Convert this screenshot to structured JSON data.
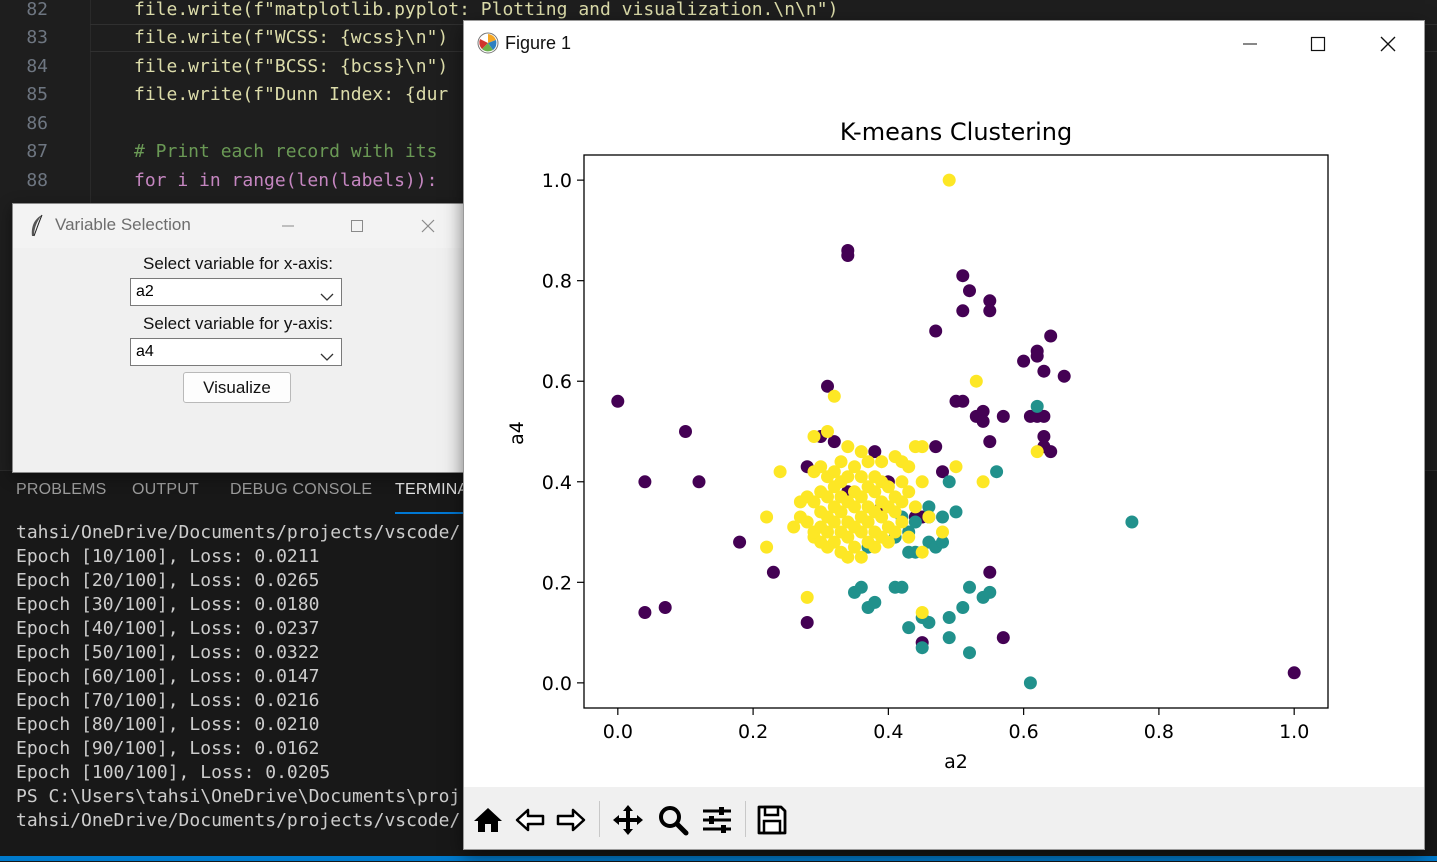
{
  "editor": {
    "line_numbers": [
      "82",
      "83",
      "84",
      "85",
      "86",
      "87",
      "88"
    ],
    "lines": {
      "l82": "file.write(f\"matplotlib.pyplot: Plotting and visualization.\\n\\n\")",
      "l83": "file.write(f\"WCSS: {wcss}\\n\")",
      "l84": "file.write(f\"BCSS: {bcss}\\n\")",
      "l85": "file.write(f\"Dunn Index: {dur",
      "l87": "# Print each record with its",
      "l88": "for i in range(len(labels)):"
    }
  },
  "panel": {
    "tabs": [
      "PROBLEMS",
      "OUTPUT",
      "DEBUG CONSOLE",
      "TERMINA"
    ],
    "active_tab": "TERMINA",
    "terminal_lines": [
      "tahsi/OneDrive/Documents/projects/vscode/",
      "Epoch [10/100], Loss: 0.0211",
      "Epoch [20/100], Loss: 0.0265",
      "Epoch [30/100], Loss: 0.0180",
      "Epoch [40/100], Loss: 0.0237",
      "Epoch [50/100], Loss: 0.0322",
      "Epoch [60/100], Loss: 0.0147",
      "Epoch [70/100], Loss: 0.0216",
      "Epoch [80/100], Loss: 0.0210",
      "Epoch [90/100], Loss: 0.0162",
      "Epoch [100/100], Loss: 0.0205",
      "PS C:\\Users\\tahsi\\OneDrive\\Documents\\proj",
      "tahsi/OneDrive/Documents/projects/vscode/"
    ]
  },
  "variable_window": {
    "title": "Variable Selection",
    "x_label": "Select variable for x-axis:",
    "x_value": "a2",
    "y_label": "Select variable for y-axis:",
    "y_value": "a4",
    "button": "Visualize"
  },
  "figure_window": {
    "title": "Figure 1",
    "toolbar": [
      "home-icon",
      "back-arrow-icon",
      "forward-arrow-icon",
      "pan-icon",
      "zoom-icon",
      "configure-subplots-icon",
      "save-icon"
    ]
  },
  "chart_data": {
    "type": "scatter",
    "title": "K-means Clustering",
    "xlabel": "a2",
    "ylabel": "a4",
    "xlim": [
      -0.05,
      1.05
    ],
    "ylim": [
      -0.05,
      1.05
    ],
    "xticks": [
      "0.0",
      "0.2",
      "0.4",
      "0.6",
      "0.8",
      "1.0"
    ],
    "yticks": [
      "0.0",
      "0.2",
      "0.4",
      "0.6",
      "0.8",
      "1.0"
    ],
    "grid": false,
    "legend": "none",
    "series": [
      {
        "color": "#440154",
        "points": [
          [
            0.0,
            0.56
          ],
          [
            0.04,
            0.4
          ],
          [
            0.04,
            0.14
          ],
          [
            0.07,
            0.15
          ],
          [
            0.1,
            0.5
          ],
          [
            0.12,
            0.4
          ],
          [
            0.18,
            0.28
          ],
          [
            0.23,
            0.22
          ],
          [
            0.28,
            0.12
          ],
          [
            0.28,
            0.43
          ],
          [
            0.3,
            0.49
          ],
          [
            0.31,
            0.59
          ],
          [
            0.32,
            0.48
          ],
          [
            0.34,
            0.38
          ],
          [
            0.34,
            0.85
          ],
          [
            0.34,
            0.86
          ],
          [
            0.38,
            0.46
          ],
          [
            0.39,
            0.35
          ],
          [
            0.4,
            0.4
          ],
          [
            0.44,
            0.33
          ],
          [
            0.45,
            0.33
          ],
          [
            0.45,
            0.08
          ],
          [
            0.47,
            0.47
          ],
          [
            0.47,
            0.7
          ],
          [
            0.48,
            0.42
          ],
          [
            0.5,
            0.56
          ],
          [
            0.51,
            0.56
          ],
          [
            0.51,
            0.74
          ],
          [
            0.51,
            0.81
          ],
          [
            0.52,
            0.78
          ],
          [
            0.53,
            0.53
          ],
          [
            0.54,
            0.54
          ],
          [
            0.54,
            0.52
          ],
          [
            0.55,
            0.76
          ],
          [
            0.55,
            0.74
          ],
          [
            0.55,
            0.48
          ],
          [
            0.55,
            0.22
          ],
          [
            0.57,
            0.53
          ],
          [
            0.57,
            0.09
          ],
          [
            0.6,
            0.64
          ],
          [
            0.61,
            0.53
          ],
          [
            0.62,
            0.53
          ],
          [
            0.62,
            0.66
          ],
          [
            0.62,
            0.65
          ],
          [
            0.63,
            0.53
          ],
          [
            0.63,
            0.49
          ],
          [
            0.63,
            0.62
          ],
          [
            0.63,
            0.47
          ],
          [
            0.64,
            0.46
          ],
          [
            0.64,
            0.69
          ],
          [
            0.66,
            0.61
          ],
          [
            1.0,
            0.02
          ]
        ]
      },
      {
        "color": "#21918c",
        "points": [
          [
            0.35,
            0.18
          ],
          [
            0.36,
            0.19
          ],
          [
            0.37,
            0.27
          ],
          [
            0.37,
            0.15
          ],
          [
            0.38,
            0.16
          ],
          [
            0.41,
            0.29
          ],
          [
            0.41,
            0.19
          ],
          [
            0.42,
            0.19
          ],
          [
            0.42,
            0.33
          ],
          [
            0.43,
            0.3
          ],
          [
            0.43,
            0.26
          ],
          [
            0.43,
            0.11
          ],
          [
            0.44,
            0.32
          ],
          [
            0.44,
            0.26
          ],
          [
            0.45,
            0.13
          ],
          [
            0.45,
            0.07
          ],
          [
            0.46,
            0.35
          ],
          [
            0.46,
            0.12
          ],
          [
            0.46,
            0.28
          ],
          [
            0.46,
            0.33
          ],
          [
            0.47,
            0.27
          ],
          [
            0.48,
            0.28
          ],
          [
            0.48,
            0.33
          ],
          [
            0.49,
            0.13
          ],
          [
            0.49,
            0.09
          ],
          [
            0.49,
            0.4
          ],
          [
            0.5,
            0.34
          ],
          [
            0.51,
            0.15
          ],
          [
            0.52,
            0.19
          ],
          [
            0.52,
            0.06
          ],
          [
            0.54,
            0.17
          ],
          [
            0.55,
            0.18
          ],
          [
            0.56,
            0.42
          ],
          [
            0.61,
            0.0
          ],
          [
            0.62,
            0.55
          ],
          [
            0.76,
            0.32
          ]
        ]
      },
      {
        "color": "#fde725",
        "points": [
          [
            0.22,
            0.33
          ],
          [
            0.22,
            0.27
          ],
          [
            0.24,
            0.42
          ],
          [
            0.26,
            0.31
          ],
          [
            0.27,
            0.36
          ],
          [
            0.27,
            0.33
          ],
          [
            0.28,
            0.32
          ],
          [
            0.28,
            0.37
          ],
          [
            0.28,
            0.17
          ],
          [
            0.29,
            0.29
          ],
          [
            0.29,
            0.3
          ],
          [
            0.29,
            0.36
          ],
          [
            0.29,
            0.42
          ],
          [
            0.29,
            0.49
          ],
          [
            0.3,
            0.28
          ],
          [
            0.3,
            0.31
          ],
          [
            0.3,
            0.34
          ],
          [
            0.3,
            0.38
          ],
          [
            0.3,
            0.43
          ],
          [
            0.31,
            0.27
          ],
          [
            0.31,
            0.3
          ],
          [
            0.31,
            0.33
          ],
          [
            0.31,
            0.37
          ],
          [
            0.31,
            0.41
          ],
          [
            0.31,
            0.5
          ],
          [
            0.32,
            0.28
          ],
          [
            0.32,
            0.32
          ],
          [
            0.32,
            0.35
          ],
          [
            0.32,
            0.39
          ],
          [
            0.32,
            0.42
          ],
          [
            0.32,
            0.57
          ],
          [
            0.33,
            0.26
          ],
          [
            0.33,
            0.3
          ],
          [
            0.33,
            0.34
          ],
          [
            0.33,
            0.37
          ],
          [
            0.33,
            0.4
          ],
          [
            0.33,
            0.44
          ],
          [
            0.34,
            0.25
          ],
          [
            0.34,
            0.29
          ],
          [
            0.34,
            0.32
          ],
          [
            0.34,
            0.36
          ],
          [
            0.34,
            0.41
          ],
          [
            0.34,
            0.47
          ],
          [
            0.35,
            0.27
          ],
          [
            0.35,
            0.31
          ],
          [
            0.35,
            0.35
          ],
          [
            0.35,
            0.38
          ],
          [
            0.35,
            0.43
          ],
          [
            0.36,
            0.25
          ],
          [
            0.36,
            0.3
          ],
          [
            0.36,
            0.33
          ],
          [
            0.36,
            0.37
          ],
          [
            0.36,
            0.41
          ],
          [
            0.36,
            0.46
          ],
          [
            0.37,
            0.28
          ],
          [
            0.37,
            0.32
          ],
          [
            0.37,
            0.35
          ],
          [
            0.37,
            0.39
          ],
          [
            0.37,
            0.44
          ],
          [
            0.38,
            0.27
          ],
          [
            0.38,
            0.3
          ],
          [
            0.38,
            0.34
          ],
          [
            0.38,
            0.38
          ],
          [
            0.38,
            0.41
          ],
          [
            0.39,
            0.29
          ],
          [
            0.39,
            0.33
          ],
          [
            0.39,
            0.36
          ],
          [
            0.39,
            0.4
          ],
          [
            0.39,
            0.44
          ],
          [
            0.4,
            0.28
          ],
          [
            0.4,
            0.31
          ],
          [
            0.4,
            0.35
          ],
          [
            0.4,
            0.39
          ],
          [
            0.41,
            0.3
          ],
          [
            0.41,
            0.34
          ],
          [
            0.41,
            0.37
          ],
          [
            0.41,
            0.45
          ],
          [
            0.42,
            0.32
          ],
          [
            0.42,
            0.36
          ],
          [
            0.42,
            0.4
          ],
          [
            0.42,
            0.44
          ],
          [
            0.43,
            0.29
          ],
          [
            0.43,
            0.38
          ],
          [
            0.43,
            0.43
          ],
          [
            0.44,
            0.35
          ],
          [
            0.44,
            0.47
          ],
          [
            0.45,
            0.47
          ],
          [
            0.45,
            0.4
          ],
          [
            0.45,
            0.26
          ],
          [
            0.45,
            0.14
          ],
          [
            0.46,
            0.33
          ],
          [
            0.48,
            0.3
          ],
          [
            0.49,
            1.0
          ],
          [
            0.5,
            0.43
          ],
          [
            0.53,
            0.6
          ],
          [
            0.54,
            0.4
          ],
          [
            0.62,
            0.46
          ]
        ]
      }
    ]
  }
}
